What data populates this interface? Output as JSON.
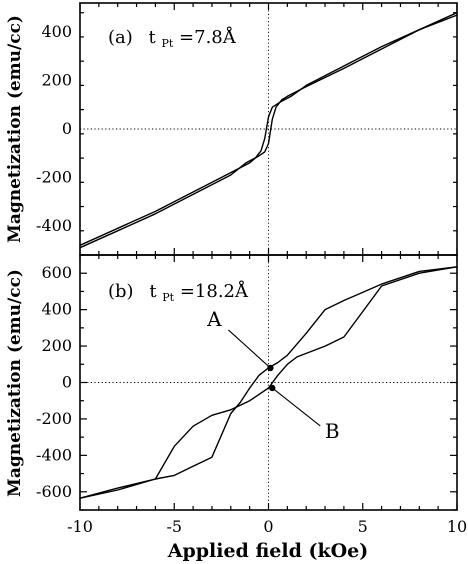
{
  "chart_data": [
    {
      "type": "line",
      "panel_label": "(a)",
      "title_prefix": "t",
      "title_subscript": "Pt",
      "title_value": "=7.8Å",
      "xlabel": "",
      "ylabel": "Magnetization (emu/cc)",
      "xlim": [
        -10,
        10
      ],
      "ylim": [
        -520,
        520
      ],
      "y_ticks": [
        -400,
        -200,
        0,
        200,
        400
      ],
      "y_tick_labels": [
        "-400",
        "-200",
        "0",
        "200",
        "400"
      ],
      "grid": false,
      "series": [
        {
          "branch": "descending",
          "x": [
            10,
            8,
            6,
            4,
            2,
            1.2,
            0.6,
            0.2,
            0,
            -0.2,
            -0.4,
            -0.7,
            -1,
            -2,
            -4,
            -6,
            -8,
            -10
          ],
          "y": [
            470,
            410,
            340,
            260,
            180,
            135,
            110,
            90,
            50,
            -40,
            -90,
            -120,
            -140,
            -180,
            -260,
            -340,
            -410,
            -480
          ]
        },
        {
          "branch": "ascending",
          "x": [
            -10,
            -8,
            -6,
            -4,
            -2,
            -1.2,
            -0.6,
            -0.2,
            0,
            0.2,
            0.4,
            0.7,
            1,
            2,
            4,
            6,
            8,
            10
          ],
          "y": [
            -490,
            -420,
            -350,
            -270,
            -190,
            -140,
            -115,
            -95,
            -60,
            40,
            90,
            120,
            135,
            175,
            250,
            330,
            410,
            480
          ]
        }
      ]
    },
    {
      "type": "line",
      "panel_label": "(b)",
      "title_prefix": "t",
      "title_subscript": "Pt",
      "title_value": "=18.2Å",
      "xlabel": "Applied field (kOe)",
      "ylabel": "Magnetization (emu/cc)",
      "xlim": [
        -10,
        10
      ],
      "ylim": [
        -700,
        700
      ],
      "x_ticks": [
        -10,
        -5,
        0,
        5,
        10
      ],
      "x_tick_labels": [
        "-10",
        "-5",
        "0",
        "5",
        "10"
      ],
      "y_ticks": [
        -600,
        -400,
        -200,
        0,
        200,
        400,
        600
      ],
      "y_tick_labels": [
        "-600",
        "-400",
        "-200",
        "0",
        "200",
        "400",
        "600"
      ],
      "grid": false,
      "series": [
        {
          "branch": "descending",
          "x": [
            10,
            8,
            6,
            4,
            3,
            2,
            1,
            0.5,
            0,
            -0.5,
            -1,
            -1.5,
            -2,
            -3,
            -4,
            -5,
            -6,
            -8,
            -10
          ],
          "y": [
            635,
            610,
            540,
            450,
            400,
            270,
            150,
            110,
            80,
            40,
            -30,
            -110,
            -170,
            -410,
            -460,
            -510,
            -530,
            -580,
            -635
          ]
        },
        {
          "branch": "ascending",
          "x": [
            -10,
            -8,
            -6,
            -5,
            -4,
            -3,
            -2,
            -1,
            0,
            0.5,
            1,
            1.5,
            2,
            3,
            4,
            5,
            6,
            8,
            10
          ],
          "y": [
            -635,
            -590,
            -530,
            -350,
            -240,
            -180,
            -150,
            -100,
            -30,
            40,
            100,
            140,
            160,
            200,
            250,
            390,
            530,
            600,
            635
          ]
        }
      ],
      "annotations": [
        {
          "label": "A",
          "point": [
            0.1,
            80
          ]
        },
        {
          "label": "B",
          "point": [
            0.2,
            -30
          ]
        }
      ]
    }
  ]
}
